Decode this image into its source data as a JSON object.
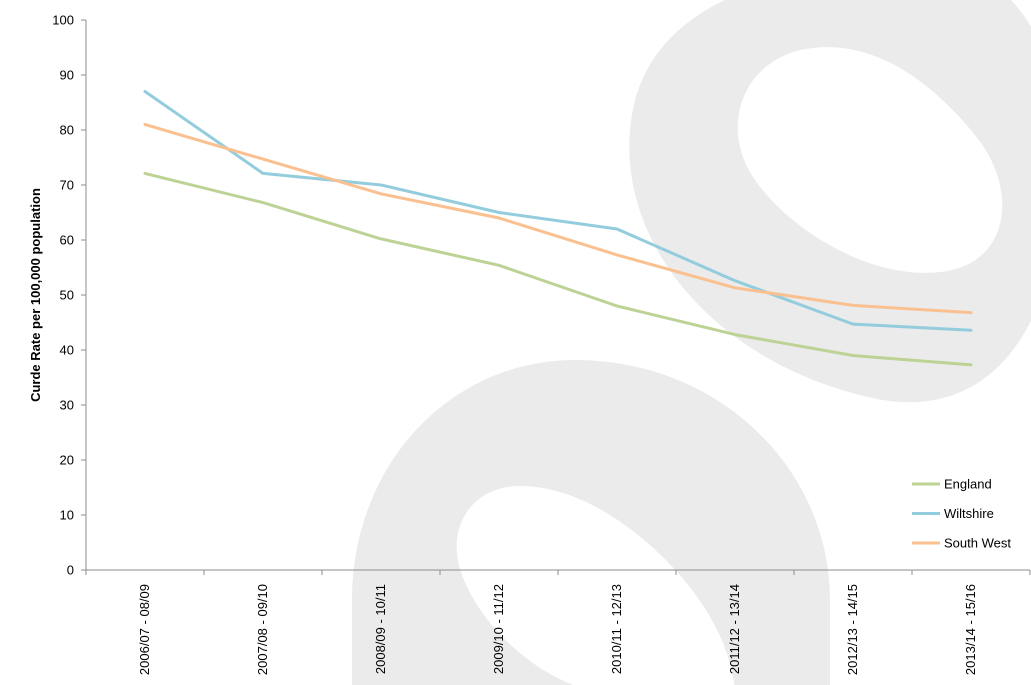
{
  "chart_data": {
    "type": "line",
    "title": "",
    "xlabel": "",
    "ylabel": "Curde Rate per 100,000 population",
    "ylim": [
      0,
      100
    ],
    "yticks": [
      0,
      10,
      20,
      30,
      40,
      50,
      60,
      70,
      80,
      90,
      100
    ],
    "categories": [
      "2006/07 - 08/09",
      "2007/08 - 09/10",
      "2008/09 - 10/11",
      "2009/10 - 11/12",
      "2010/11 - 12/13",
      "2011/12 - 13/14",
      "2012/13 - 14/15",
      "2013/14 - 15/16"
    ],
    "series": [
      {
        "name": "England",
        "color": "#bdd295",
        "values": [
          72.1,
          66.8,
          60.2,
          55.4,
          48.0,
          42.8,
          39.0,
          37.3
        ]
      },
      {
        "name": "Wiltshire",
        "color": "#93cddd",
        "values": [
          87.0,
          72.1,
          70.0,
          65.0,
          62.0,
          52.6,
          44.7,
          43.6
        ]
      },
      {
        "name": "South West",
        "color": "#fac090",
        "values": [
          81.0,
          74.7,
          68.4,
          64.0,
          57.3,
          51.3,
          48.1,
          46.8
        ]
      }
    ],
    "grid": false,
    "legend_position": "bottom-right"
  }
}
